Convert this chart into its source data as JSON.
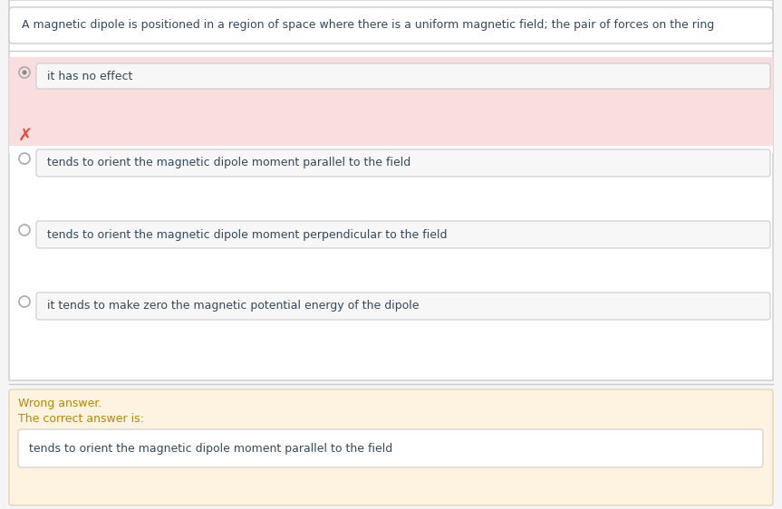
{
  "question": "A magnetic dipole is positioned in a region of space where there is a uniform magnetic field; the pair of forces on the ring",
  "options": [
    "it has no effect",
    "tends to orient the magnetic dipole moment parallel to the field",
    "tends to orient the magnetic dipole moment perpendicular to the field",
    "it tends to make zero the magnetic potential energy of the dipole"
  ],
  "wrong_answer_label": "Wrong answer.",
  "correct_answer_label": "The correct answer is:",
  "correct_answer_text": "tends to orient the magnetic dipole moment parallel to the field",
  "bg_color": "#f5f5f5",
  "question_box_bg": "#ffffff",
  "question_box_border": "#cccccc",
  "option_box_bg": "#f0f0f0",
  "option_box_border": "#cccccc",
  "selected_row_bg": "#f8dede",
  "wrong_section_bg": "#fdf3e0",
  "wrong_label_color": "#b8860b",
  "correct_label_color": "#b8860b",
  "question_text_color": "#34495e",
  "option_text_color": "#34495e",
  "x_mark_color": "#e74c3c",
  "radio_border_color": "#aaaaaa",
  "separator_color": "#cccccc",
  "font_size_question": 9.0,
  "font_size_option": 9.0,
  "font_size_wrong": 9.0,
  "fig_width": 8.63,
  "fig_height": 5.62
}
